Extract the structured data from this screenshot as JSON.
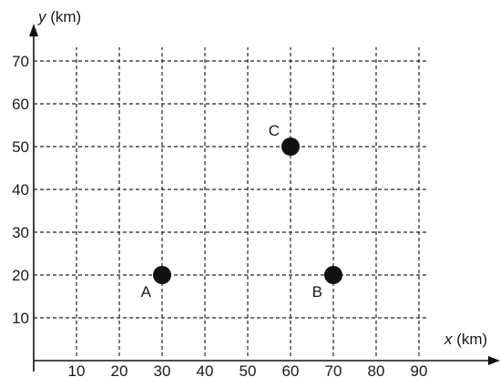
{
  "chart_data": {
    "type": "scatter",
    "x_axis": {
      "var": "x",
      "unit": " (km)",
      "ticks": [
        10,
        20,
        30,
        40,
        50,
        60,
        70,
        80,
        90
      ],
      "range": [
        0,
        90
      ]
    },
    "y_axis": {
      "var": "y",
      "unit": " (km)",
      "ticks": [
        10,
        20,
        30,
        40,
        50,
        60,
        70
      ],
      "range": [
        0,
        70
      ]
    },
    "grid": true,
    "points": [
      {
        "label": "A",
        "x": 30,
        "y": 20
      },
      {
        "label": "B",
        "x": 70,
        "y": 20
      },
      {
        "label": "C",
        "x": 60,
        "y": 50
      }
    ],
    "colors": {
      "ink": "#111111",
      "grid": "#222222",
      "background": "#ffffff"
    }
  }
}
